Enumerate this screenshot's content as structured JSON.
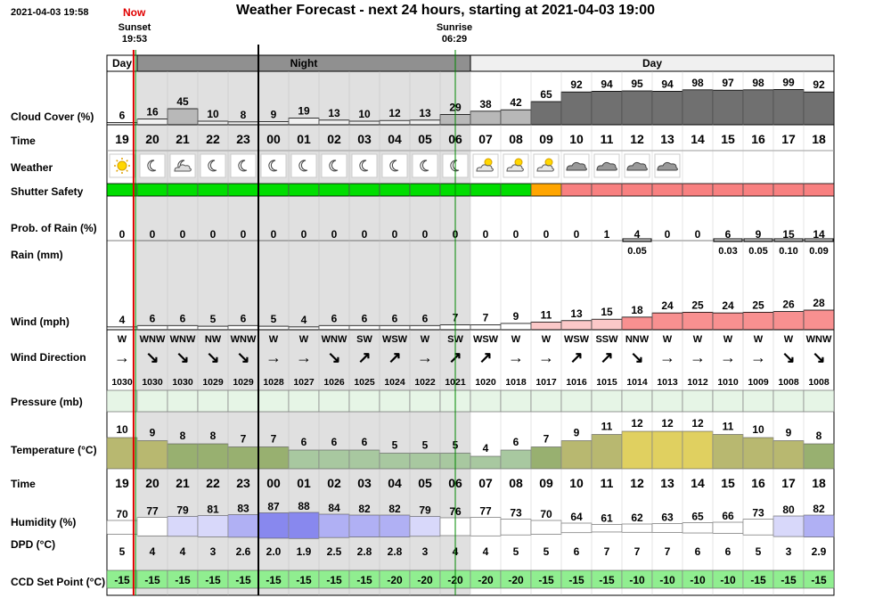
{
  "header": {
    "timestamp": "2021-04-03 19:58",
    "now_label": "Now",
    "title": "Weather Forecast - next 24 hours, starting at 2021-04-03 19:00",
    "sunset_label": "Sunset",
    "sunset_time": "19:53",
    "sunrise_label": "Sunrise",
    "sunrise_time": "06:29"
  },
  "period_labels": {
    "day": "Day",
    "night": "Night"
  },
  "row_labels": {
    "cloud": "Cloud Cover (%)",
    "time": "Time",
    "weather": "Weather",
    "shutter": "Shutter Safety",
    "prob_rain": "Prob. of Rain (%)",
    "rain": "Rain (mm)",
    "wind": "Wind (mph)",
    "wind_dir": "Wind Direction",
    "pressure": "Pressure (mb)",
    "temperature": "Temperature (°C)",
    "humidity": "Humidity (%)",
    "dpd": "DPD (°C)",
    "ccd": "CCD Set Point (°C)"
  },
  "colors": {
    "night_shade": "#e0e0e0",
    "day_bar": "#f0f0f0",
    "night_bar": "#909090",
    "shutter_safe": "#00dd00",
    "shutter_warn": "#ffa500",
    "shutter_unsafe": "#f88080",
    "ccd_fill": "#90ee90",
    "pressure_fill": "#e6f5e6",
    "now_line": "#e00000",
    "sun_line": "#008800"
  },
  "chart_data": {
    "type": "table",
    "hours": [
      "19",
      "20",
      "21",
      "22",
      "23",
      "00",
      "01",
      "02",
      "03",
      "04",
      "05",
      "06",
      "07",
      "08",
      "09",
      "10",
      "11",
      "12",
      "13",
      "14",
      "15",
      "16",
      "17",
      "18"
    ],
    "cloud_cover": [
      6,
      16,
      45,
      10,
      8,
      9,
      19,
      13,
      10,
      12,
      13,
      29,
      38,
      42,
      65,
      92,
      94,
      95,
      94,
      98,
      97,
      98,
      99,
      92
    ],
    "weather_icons": [
      "sun-icon",
      "moon-icon",
      "moon-cloud-icon",
      "moon-icon",
      "moon-icon",
      "moon-icon",
      "moon-icon",
      "moon-icon",
      "moon-icon",
      "moon-icon",
      "moon-icon",
      "moon-icon",
      "sun-cloud-icon",
      "sun-cloud-icon",
      "sun-cloud-icon",
      "cloud-icon",
      "cloud-icon",
      "cloud-icon",
      "cloud-icon",
      "",
      "",
      "",
      "",
      ""
    ],
    "shutter_safety": [
      "safe",
      "safe",
      "safe",
      "safe",
      "safe",
      "safe",
      "safe",
      "safe",
      "safe",
      "safe",
      "safe",
      "safe",
      "safe",
      "safe",
      "warn",
      "unsafe",
      "unsafe",
      "unsafe",
      "unsafe",
      "unsafe",
      "unsafe",
      "unsafe",
      "unsafe",
      "unsafe"
    ],
    "prob_rain": [
      0,
      0,
      0,
      0,
      0,
      0,
      0,
      0,
      0,
      0,
      0,
      0,
      0,
      0,
      0,
      0,
      1,
      4,
      0,
      0,
      6,
      9,
      15,
      14
    ],
    "rain_mm": [
      "",
      "",
      "",
      "",
      "",
      "",
      "",
      "",
      "",
      "",
      "",
      "",
      "",
      "",
      "",
      "",
      "",
      "0.05",
      "",
      "",
      "0.03",
      "0.05",
      "0.10",
      "0.09"
    ],
    "wind_mph": [
      4,
      6,
      6,
      5,
      6,
      5,
      4,
      6,
      6,
      6,
      6,
      7,
      7,
      9,
      11,
      13,
      15,
      18,
      24,
      25,
      24,
      25,
      26,
      28
    ],
    "wind_dir": [
      "W",
      "WNW",
      "WNW",
      "NW",
      "WNW",
      "W",
      "W",
      "WNW",
      "SW",
      "WSW",
      "W",
      "SW",
      "WSW",
      "W",
      "W",
      "WSW",
      "SSW",
      "NNW",
      "W",
      "W",
      "W",
      "W",
      "W",
      "WNW"
    ],
    "wind_dir_glyph": [
      "→",
      "↘",
      "↘",
      "↘",
      "↘",
      "→",
      "→",
      "↘",
      "↗",
      "↗",
      "→",
      "↗",
      "↗",
      "→",
      "→",
      "↗",
      "↗",
      "↘",
      "→",
      "→",
      "→",
      "→",
      "↘",
      "↘"
    ],
    "pressure_mb": [
      1030,
      1030,
      1030,
      1029,
      1029,
      1028,
      1027,
      1026,
      1025,
      1024,
      1022,
      1021,
      1020,
      1018,
      1017,
      1016,
      1015,
      1014,
      1013,
      1012,
      1010,
      1009,
      1008,
      1008
    ],
    "temperature_c": [
      10,
      9,
      8,
      8,
      7,
      7,
      6,
      6,
      6,
      5,
      5,
      5,
      4,
      6,
      7,
      9,
      11,
      12,
      12,
      12,
      11,
      10,
      9,
      8
    ],
    "humidity_pct": [
      70,
      77,
      79,
      81,
      83,
      87,
      88,
      84,
      82,
      82,
      79,
      76,
      77,
      73,
      70,
      64,
      61,
      62,
      63,
      65,
      66,
      73,
      80,
      82
    ],
    "dpd_c": [
      "5",
      "4",
      "4",
      "3",
      "2.6",
      "2.0",
      "1.9",
      "2.5",
      "2.8",
      "2.8",
      "3",
      "4",
      "4",
      "5",
      "5",
      "6",
      "7",
      "7",
      "7",
      "6",
      "6",
      "5",
      "3",
      "2.9"
    ],
    "ccd_set_point": [
      -15,
      -15,
      -15,
      -15,
      -15,
      -15,
      -15,
      -15,
      -15,
      -20,
      -20,
      -20,
      -20,
      -20,
      -15,
      -15,
      -15,
      -10,
      -10,
      -10,
      -10,
      -15,
      -15,
      -15
    ]
  }
}
